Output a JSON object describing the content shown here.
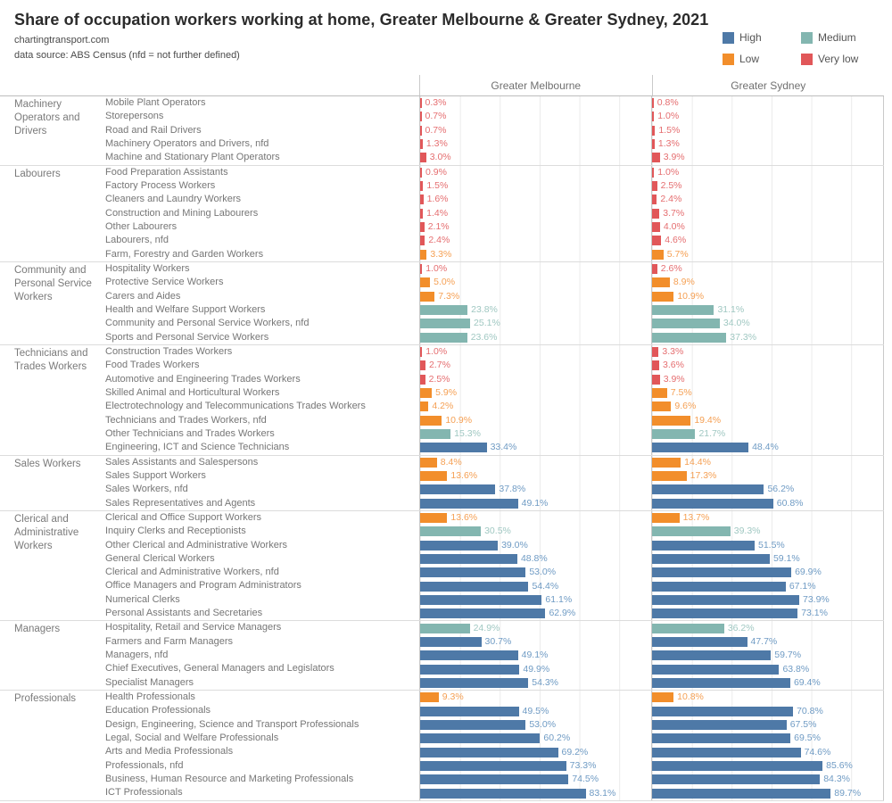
{
  "header": {
    "title": "Share of occupation workers working at home, Greater Melbourne & Greater Sydney, 2021",
    "subtitle1": "chartingtransport.com",
    "subtitle2": "data source: ABS Census (nfd = not further defined)"
  },
  "legend": {
    "items": [
      {
        "label": "High",
        "color": "#4e79a7"
      },
      {
        "label": "Medium",
        "color": "#83b6b0"
      },
      {
        "label": "Low",
        "color": "#f28e2b"
      },
      {
        "label": "Very low",
        "color": "#e15759"
      }
    ]
  },
  "chart_data": {
    "type": "bar",
    "orientation": "horizontal",
    "value_unit": "%",
    "axis_max": 116,
    "gridline_interval": 20,
    "grid": true,
    "columns": [
      "Greater Melbourne",
      "Greater Sydney"
    ],
    "color_key": {
      "High": "#4e79a7",
      "Medium": "#83b6b0",
      "Low": "#f28e2b",
      "Very low": "#e15759"
    },
    "label_color_key": {
      "High": "#6f9bc4",
      "Medium": "#a0c8c2",
      "Low": "#f5a054",
      "Very low": "#e56e70"
    },
    "groups": [
      {
        "category": "Machinery Operators and Drivers",
        "rows": [
          {
            "label": "Mobile Plant Operators",
            "level": "Very low",
            "values": [
              0.3,
              0.8
            ]
          },
          {
            "label": "Storepersons",
            "level": "Very low",
            "values": [
              0.7,
              1.0
            ]
          },
          {
            "label": "Road and Rail Drivers",
            "level": "Very low",
            "values": [
              0.7,
              1.5
            ]
          },
          {
            "label": "Machinery Operators and Drivers, nfd",
            "level": "Very low",
            "values": [
              1.3,
              1.3
            ]
          },
          {
            "label": "Machine and Stationary Plant Operators",
            "level": "Very low",
            "values": [
              3.0,
              3.9
            ]
          }
        ]
      },
      {
        "category": "Labourers",
        "rows": [
          {
            "label": "Food Preparation Assistants",
            "level": "Very low",
            "values": [
              0.9,
              1.0
            ]
          },
          {
            "label": "Factory Process Workers",
            "level": "Very low",
            "values": [
              1.5,
              2.5
            ]
          },
          {
            "label": "Cleaners and Laundry Workers",
            "level": "Very low",
            "values": [
              1.6,
              2.4
            ]
          },
          {
            "label": "Construction and Mining Labourers",
            "level": "Very low",
            "values": [
              1.4,
              3.7
            ]
          },
          {
            "label": "Other Labourers",
            "level": "Very low",
            "values": [
              2.1,
              4.0
            ]
          },
          {
            "label": "Labourers, nfd",
            "level": "Very low",
            "values": [
              2.4,
              4.6
            ]
          },
          {
            "label": "Farm, Forestry and Garden Workers",
            "level": "Low",
            "values": [
              3.3,
              5.7
            ]
          }
        ]
      },
      {
        "category": "Community and Personal Service Workers",
        "rows": [
          {
            "label": "Hospitality Workers",
            "level": "Very low",
            "values": [
              1.0,
              2.6
            ]
          },
          {
            "label": "Protective Service Workers",
            "level": "Low",
            "values": [
              5.0,
              8.9
            ]
          },
          {
            "label": "Carers and Aides",
            "level": "Low",
            "values": [
              7.3,
              10.9
            ]
          },
          {
            "label": "Health and Welfare Support Workers",
            "level": "Medium",
            "values": [
              23.8,
              31.1
            ]
          },
          {
            "label": "Community and Personal Service Workers, nfd",
            "level": "Medium",
            "values": [
              25.1,
              34.0
            ]
          },
          {
            "label": "Sports and Personal Service Workers",
            "level": "Medium",
            "values": [
              23.6,
              37.3
            ]
          }
        ]
      },
      {
        "category": "Technicians and Trades Workers",
        "rows": [
          {
            "label": "Construction Trades Workers",
            "level": "Very low",
            "values": [
              1.0,
              3.3
            ]
          },
          {
            "label": "Food Trades Workers",
            "level": "Very low",
            "values": [
              2.7,
              3.6
            ]
          },
          {
            "label": "Automotive and Engineering Trades Workers",
            "level": "Very low",
            "values": [
              2.5,
              3.9
            ]
          },
          {
            "label": "Skilled Animal and Horticultural Workers",
            "level": "Low",
            "values": [
              5.9,
              7.5
            ]
          },
          {
            "label": "Electrotechnology and Telecommunications Trades Workers",
            "level": "Low",
            "values": [
              4.2,
              9.6
            ]
          },
          {
            "label": "Technicians and Trades Workers, nfd",
            "level": "Low",
            "values": [
              10.9,
              19.4
            ]
          },
          {
            "label": "Other Technicians and Trades Workers",
            "level": "Medium",
            "values": [
              15.3,
              21.7
            ]
          },
          {
            "label": "Engineering, ICT and Science Technicians",
            "level": "High",
            "values": [
              33.4,
              48.4
            ]
          }
        ]
      },
      {
        "category": "Sales Workers",
        "rows": [
          {
            "label": "Sales Assistants and Salespersons",
            "level": "Low",
            "values": [
              8.4,
              14.4
            ]
          },
          {
            "label": "Sales Support Workers",
            "level": "Low",
            "values": [
              13.6,
              17.3
            ]
          },
          {
            "label": "Sales Workers, nfd",
            "level": "High",
            "values": [
              37.8,
              56.2
            ]
          },
          {
            "label": "Sales Representatives and Agents",
            "level": "High",
            "values": [
              49.1,
              60.8
            ]
          }
        ]
      },
      {
        "category": "Clerical and Administrative Workers",
        "rows": [
          {
            "label": "Clerical and Office Support Workers",
            "level": "Low",
            "values": [
              13.6,
              13.7
            ]
          },
          {
            "label": "Inquiry Clerks and Receptionists",
            "level": "Medium",
            "values": [
              30.5,
              39.3
            ]
          },
          {
            "label": "Other Clerical and Administrative Workers",
            "level": "High",
            "values": [
              39.0,
              51.5
            ]
          },
          {
            "label": "General Clerical Workers",
            "level": "High",
            "values": [
              48.8,
              59.1
            ]
          },
          {
            "label": "Clerical and Administrative Workers, nfd",
            "level": "High",
            "values": [
              53.0,
              69.9
            ]
          },
          {
            "label": "Office Managers and Program Administrators",
            "level": "High",
            "values": [
              54.4,
              67.1
            ]
          },
          {
            "label": "Numerical Clerks",
            "level": "High",
            "values": [
              61.1,
              73.9
            ]
          },
          {
            "label": "Personal Assistants and Secretaries",
            "level": "High",
            "values": [
              62.9,
              73.1
            ]
          }
        ]
      },
      {
        "category": "Managers",
        "rows": [
          {
            "label": "Hospitality, Retail and Service Managers",
            "level": "Medium",
            "values": [
              24.9,
              36.2
            ]
          },
          {
            "label": "Farmers and Farm Managers",
            "level": "High",
            "values": [
              30.7,
              47.7
            ]
          },
          {
            "label": "Managers, nfd",
            "level": "High",
            "values": [
              49.1,
              59.7
            ]
          },
          {
            "label": "Chief Executives, General Managers and Legislators",
            "level": "High",
            "values": [
              49.9,
              63.8
            ]
          },
          {
            "label": "Specialist Managers",
            "level": "High",
            "values": [
              54.3,
              69.4
            ]
          }
        ]
      },
      {
        "category": "Professionals",
        "rows": [
          {
            "label": "Health Professionals",
            "level": "Low",
            "values": [
              9.3,
              10.8
            ]
          },
          {
            "label": "Education Professionals",
            "level": "High",
            "values": [
              49.5,
              70.8
            ]
          },
          {
            "label": "Design, Engineering, Science and Transport Professionals",
            "level": "High",
            "values": [
              53.0,
              67.5
            ]
          },
          {
            "label": "Legal, Social and Welfare Professionals",
            "level": "High",
            "values": [
              60.2,
              69.5
            ]
          },
          {
            "label": "Arts and Media Professionals",
            "level": "High",
            "values": [
              69.2,
              74.6
            ]
          },
          {
            "label": "Professionals, nfd",
            "level": "High",
            "values": [
              73.3,
              85.6
            ]
          },
          {
            "label": "Business, Human Resource and Marketing Professionals",
            "level": "High",
            "values": [
              74.5,
              84.3
            ]
          },
          {
            "label": "ICT Professionals",
            "level": "High",
            "values": [
              83.1,
              89.7
            ]
          }
        ]
      }
    ]
  }
}
